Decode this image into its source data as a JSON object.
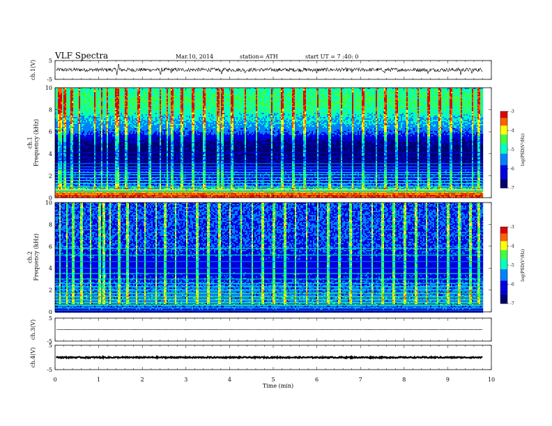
{
  "header": {
    "title": "VLF  Spectra",
    "date": "Mar.10, 2014",
    "station": "station= ATH",
    "start": "start  UT =   7 :40: 0"
  },
  "colorbar": {
    "label": "log(PSD(V²/Hz)",
    "ticks": [
      "-3",
      "-4",
      "-5",
      "-6",
      "-7"
    ],
    "range": [
      -7,
      -3
    ],
    "colors": [
      "#000080",
      "#0000ff",
      "#00c0ff",
      "#00ff80",
      "#ffff00",
      "#ff4000",
      "#ffffff"
    ]
  },
  "chart_data": [
    {
      "type": "line",
      "name": "ch1-waveform",
      "ylabel": "ch.1(V)",
      "ylim": [
        -5,
        5
      ],
      "y_ticks": [
        "5",
        "-5"
      ],
      "xlim": [
        0,
        10
      ],
      "baseline": 0.1,
      "noise_amplitude": 1.0,
      "spikes": [
        {
          "x": 1.42,
          "y": -2.8
        },
        {
          "x": 1.46,
          "y": 3.0
        },
        {
          "x": 2.42,
          "y": -2.3
        },
        {
          "x": 2.66,
          "y": -1.7
        },
        {
          "x": 3.82,
          "y": -2.0
        },
        {
          "x": 4.35,
          "y": -1.4
        },
        {
          "x": 6.0,
          "y": -1.6
        },
        {
          "x": 6.8,
          "y": -1.2
        },
        {
          "x": 7.55,
          "y": -1.5
        },
        {
          "x": 8.55,
          "y": -1.8
        },
        {
          "x": 9.3,
          "y": -2.4
        },
        {
          "x": 9.55,
          "y": -1.7
        }
      ],
      "x_end": 9.8
    },
    {
      "type": "heatmap",
      "name": "ch1-spectrogram",
      "ylabel": "ch.1\nFrequency  (kHz)",
      "ylim": [
        0,
        10
      ],
      "y_ticks": [
        "0",
        "2",
        "4",
        "6",
        "8",
        "10"
      ],
      "xlim": [
        0,
        10
      ],
      "x_end": 9.8,
      "profile_khz": [
        0,
        0.3,
        0.6,
        1.0,
        1.5,
        2.0,
        2.5,
        3.0,
        3.5,
        4.0,
        4.5,
        5.0,
        5.5,
        6.0,
        6.5,
        7.0,
        7.5,
        8.0,
        8.5,
        9.0,
        9.5,
        10.0
      ],
      "profile_log_psd": [
        -3.3,
        -3.4,
        -4.6,
        -5.4,
        -5.9,
        -6.0,
        -6.1,
        -6.6,
        -6.8,
        -6.8,
        -6.8,
        -6.7,
        -6.3,
        -5.7,
        -5.4,
        -5.2,
        -5.0,
        -4.8,
        -4.6,
        -4.6,
        -4.7,
        -4.9
      ],
      "hlines_khz": [
        0.25,
        0.4,
        0.55,
        0.75,
        1.0,
        1.3,
        1.55,
        1.8,
        2.1,
        2.3,
        2.55,
        2.8,
        3.1,
        3.4,
        3.7,
        4.1
      ],
      "bursts_min": [
        0.07,
        0.12,
        0.21,
        0.36,
        0.55,
        0.9,
        1.05,
        1.18,
        1.38,
        1.42,
        1.62,
        1.9,
        2.15,
        2.4,
        2.55,
        2.66,
        2.9,
        3.14,
        3.4,
        3.72,
        3.82,
        4.05,
        4.35,
        4.6,
        4.95,
        5.2,
        5.45,
        5.7,
        6.0,
        6.28,
        6.55,
        6.8,
        7.05,
        7.35,
        7.55,
        7.82,
        8.05,
        8.3,
        8.55,
        8.8,
        9.05,
        9.3,
        9.55,
        9.7
      ]
    },
    {
      "type": "heatmap",
      "name": "ch2-spectrogram",
      "ylabel": "ch.2\nFrequency  (kHz)",
      "ylim": [
        0,
        10
      ],
      "y_ticks": [
        "0",
        "2",
        "4",
        "6",
        "8",
        "10"
      ],
      "xlim": [
        0,
        10
      ],
      "x_end": 9.8,
      "profile_khz": [
        0,
        0.3,
        0.6,
        1.0,
        1.5,
        2.0,
        2.5,
        3.0,
        3.5,
        4.0,
        4.5,
        5.0,
        5.5,
        6.0,
        6.5,
        7.0,
        7.5,
        8.0,
        8.5,
        9.0,
        9.5,
        10.0
      ],
      "profile_log_psd": [
        -6.4,
        -6.1,
        -5.5,
        -5.5,
        -5.5,
        -5.6,
        -5.7,
        -6.0,
        -6.1,
        -6.2,
        -6.2,
        -6.1,
        -6.0,
        -5.8,
        -5.9,
        -5.8,
        -5.8,
        -5.8,
        -5.8,
        -5.8,
        -5.8,
        -5.8
      ],
      "hlines_khz": [
        0.15,
        0.35,
        0.6,
        0.85,
        1.1,
        1.4,
        1.7,
        2.0,
        2.3,
        2.6,
        3.0,
        3.5,
        4.0,
        4.6,
        5.2,
        5.8
      ],
      "bursts_min": [
        0.1,
        0.25,
        0.4,
        0.6,
        0.8,
        1.0,
        1.1,
        1.25,
        1.45,
        1.65,
        1.85,
        2.05,
        2.3,
        2.5,
        2.75,
        3.0,
        3.25,
        3.5,
        3.75,
        4.0,
        4.25,
        4.5,
        4.75,
        5.0,
        5.25,
        5.5,
        5.75,
        6.0,
        6.25,
        6.5,
        6.75,
        7.0,
        7.25,
        7.5,
        7.75,
        8.0,
        8.25,
        8.5,
        8.75,
        9.0,
        9.25,
        9.5,
        9.7
      ]
    },
    {
      "type": "line",
      "name": "ch3-waveform",
      "ylabel": "ch.3(V)",
      "ylim": [
        -5,
        5
      ],
      "y_ticks": [
        "5",
        "-5"
      ],
      "xlim": [
        0,
        10
      ],
      "baseline": 0.0,
      "noise_amplitude": 0.05,
      "spikes": [],
      "x_end": 9.8
    },
    {
      "type": "line",
      "name": "ch4-waveform",
      "ylabel": "ch.4(V)",
      "ylim": [
        -5,
        5
      ],
      "y_ticks": [
        "5",
        "-5"
      ],
      "xlim": [
        0,
        10
      ],
      "baseline": 0.0,
      "noise_amplitude": 0.25,
      "spikes": [],
      "x_end": 9.8
    }
  ],
  "x_axis": {
    "label": "Time  (min)",
    "ticks": [
      "0",
      "1",
      "2",
      "3",
      "4",
      "5",
      "6",
      "7",
      "8",
      "9",
      "10"
    ]
  }
}
